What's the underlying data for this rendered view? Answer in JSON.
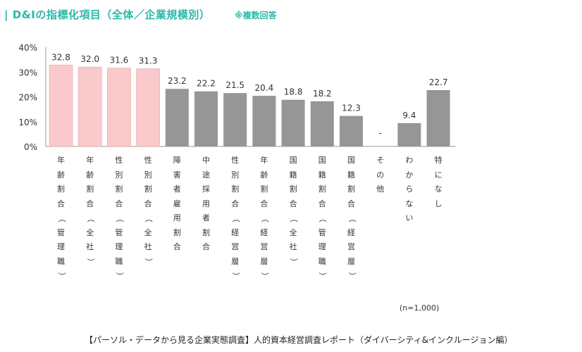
{
  "header": {
    "title": "| D&Iの指標化項目（全体／企業規模別）",
    "note": "※複数回答"
  },
  "chart_data": {
    "type": "bar",
    "title": "D&Iの指標化項目（全体／企業規模別）",
    "ylim": [
      0,
      40
    ],
    "yticks": [
      "0%",
      "10%",
      "20%",
      "30%",
      "40%"
    ],
    "categories": [
      "年齢割合（管理職）",
      "年齢割合（全社）",
      "性別割合（管理職）",
      "性別割合（全社）",
      "障害者雇用割合",
      "中途採用者割合",
      "性別割合（経営層）",
      "年齢割合（経営層）",
      "国籍割合（全社）",
      "国籍割合（管理職）",
      "国籍割合（経営層）",
      "その他",
      "わからない",
      "特になし"
    ],
    "values": [
      32.8,
      32.0,
      31.6,
      31.3,
      23.2,
      22.2,
      21.5,
      20.4,
      18.8,
      18.2,
      12.3,
      null,
      9.4,
      22.7
    ],
    "value_labels": [
      "32.8",
      "32.0",
      "31.6",
      "31.3",
      "23.2",
      "22.2",
      "21.5",
      "20.4",
      "18.8",
      "18.2",
      "12.3",
      "-",
      "9.4",
      "22.7"
    ],
    "highlight_count": 4,
    "colors": {
      "highlight": "#f9c9cc",
      "highlight_edge": "#e7a4a9",
      "normal": "#969696"
    }
  },
  "footer": {
    "sample": "(n=1,000)",
    "source": "【パーソル・データから見る企業実態調査】人的資本経営調査レポート（ダイバーシティ&インクルージョン編）"
  }
}
